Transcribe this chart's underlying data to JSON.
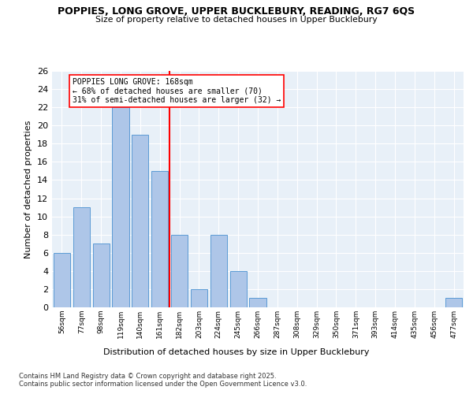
{
  "title_line1": "POPPIES, LONG GROVE, UPPER BUCKLEBURY, READING, RG7 6QS",
  "title_line2": "Size of property relative to detached houses in Upper Bucklebury",
  "xlabel": "Distribution of detached houses by size in Upper Bucklebury",
  "ylabel": "Number of detached properties",
  "categories": [
    "56sqm",
    "77sqm",
    "98sqm",
    "119sqm",
    "140sqm",
    "161sqm",
    "182sqm",
    "203sqm",
    "224sqm",
    "245sqm",
    "266sqm",
    "287sqm",
    "308sqm",
    "329sqm",
    "350sqm",
    "371sqm",
    "393sqm",
    "414sqm",
    "435sqm",
    "456sqm",
    "477sqm"
  ],
  "values": [
    6,
    11,
    7,
    22,
    19,
    15,
    8,
    2,
    8,
    4,
    1,
    0,
    0,
    0,
    0,
    0,
    0,
    0,
    0,
    0,
    1
  ],
  "bar_color": "#aec6e8",
  "bar_edge_color": "#5b9bd5",
  "red_line_x": 5.5,
  "red_line_label_title": "POPPIES LONG GROVE: 168sqm",
  "red_line_label_line2": "← 68% of detached houses are smaller (70)",
  "red_line_label_line3": "31% of semi-detached houses are larger (32) →",
  "ylim": [
    0,
    26
  ],
  "yticks": [
    0,
    2,
    4,
    6,
    8,
    10,
    12,
    14,
    16,
    18,
    20,
    22,
    24,
    26
  ],
  "bg_color": "#e8f0f8",
  "grid_color": "#ffffff",
  "footer_line1": "Contains HM Land Registry data © Crown copyright and database right 2025.",
  "footer_line2": "Contains public sector information licensed under the Open Government Licence v3.0."
}
